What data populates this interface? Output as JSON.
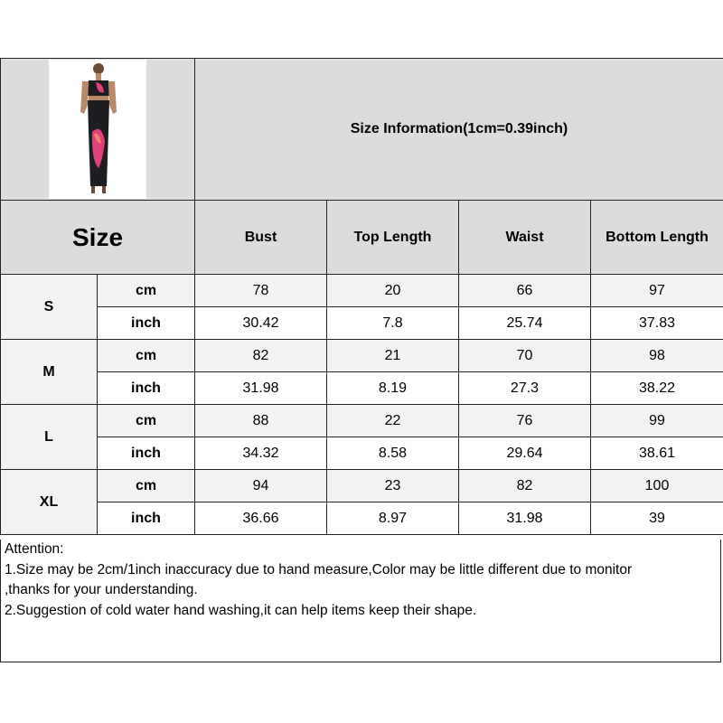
{
  "title": "Size Information(1cm=0.39inch)",
  "size_header": "Size",
  "columns": [
    "Bust",
    "Top Length",
    "Waist",
    "Bottom Length"
  ],
  "product_image": {
    "alt": "model wearing black strapless crop top and maxi skirt with pink floral print",
    "colors": {
      "garment": "#1e1e22",
      "print": "#e0407a"
    }
  },
  "rows": [
    {
      "size": "S",
      "cm_label": "cm",
      "inch_label": "inch",
      "cm": [
        "78",
        "20",
        "66",
        "97"
      ],
      "inch": [
        "30.42",
        "7.8",
        "25.74",
        "37.83"
      ]
    },
    {
      "size": "M",
      "cm_label": "cm",
      "inch_label": "inch",
      "cm": [
        "82",
        "21",
        "70",
        "98"
      ],
      "inch": [
        "31.98",
        "8.19",
        "27.3",
        "38.22"
      ]
    },
    {
      "size": "L",
      "cm_label": "cm",
      "inch_label": "inch",
      "cm": [
        "88",
        "22",
        "76",
        "99"
      ],
      "inch": [
        "34.32",
        "8.58",
        "29.64",
        "38.61"
      ]
    },
    {
      "size": "XL",
      "cm_label": "cm",
      "inch_label": "inch",
      "cm": [
        "94",
        "23",
        "82",
        "100"
      ],
      "inch": [
        "36.66",
        "8.97",
        "31.98",
        "39"
      ]
    }
  ],
  "attention": {
    "heading": "Attention:",
    "lines": [
      "1.Size may be 2cm/1inch inaccuracy due to hand measure,Color may be little different due to monitor",
      ",thanks for your understanding.",
      "2.Suggestion of cold water hand washing,it can help items keep their shape."
    ]
  }
}
